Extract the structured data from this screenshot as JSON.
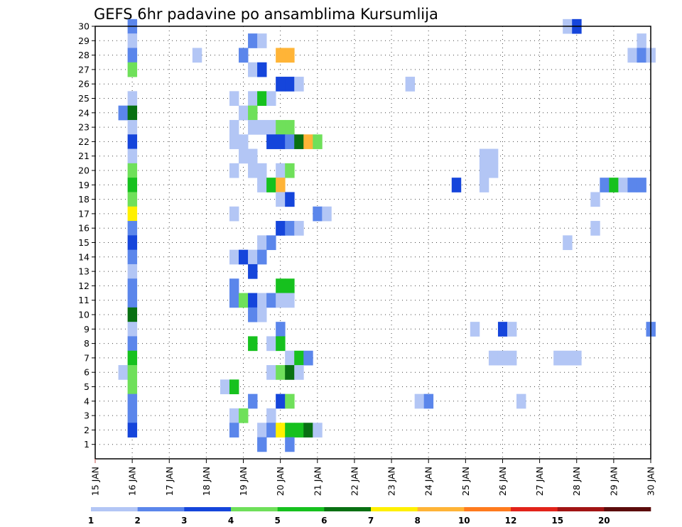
{
  "chart_data": {
    "type": "heatmap",
    "title": "GEFS 6hr padavine po ansamblima Kursumlija",
    "x_tick_labels": [
      "15 JAN",
      "16 JAN",
      "17 JAN",
      "18 JAN",
      "19 JAN",
      "20 JAN",
      "21 JAN",
      "22 JAN",
      "23 JAN",
      "24 JAN",
      "25 JAN",
      "26 JAN",
      "27 JAN",
      "28 JAN",
      "29 JAN",
      "30 JAN"
    ],
    "x_range_days": [
      15,
      30
    ],
    "y_tick_labels": [
      "1",
      "2",
      "3",
      "4",
      "5",
      "6",
      "7",
      "8",
      "9",
      "10",
      "11",
      "12",
      "13",
      "14",
      "15",
      "16",
      "17",
      "18",
      "19",
      "20",
      "21",
      "22",
      "23",
      "24",
      "25",
      "26",
      "27",
      "28",
      "29",
      "30"
    ],
    "y_range": [
      0,
      30
    ],
    "grid": true,
    "legend": "bottom",
    "colorbar": {
      "labels": [
        "1",
        "2",
        "3",
        "4",
        "5",
        "6",
        "7",
        "8",
        "10",
        "12",
        "15",
        "20"
      ],
      "colors": [
        "#b3c6f5",
        "#5b86eb",
        "#1545db",
        "#6fe05a",
        "#16c11e",
        "#087012",
        "#fff000",
        "#ffb437",
        "#ff7b1e",
        "#e2231a",
        "#a21414",
        "#5c0c0c"
      ]
    },
    "cells": [
      {
        "m": 30,
        "d": 16.0,
        "v": 2
      },
      {
        "m": 30,
        "d": 27.75,
        "v": 1
      },
      {
        "m": 30,
        "d": 28.0,
        "v": 3
      },
      {
        "m": 29,
        "d": 16.0,
        "v": 1
      },
      {
        "m": 29,
        "d": 19.25,
        "v": 2
      },
      {
        "m": 29,
        "d": 19.5,
        "v": 1
      },
      {
        "m": 29,
        "d": 29.75,
        "v": 1
      },
      {
        "m": 28,
        "d": 16.0,
        "v": 2
      },
      {
        "m": 28,
        "d": 17.75,
        "v": 1
      },
      {
        "m": 28,
        "d": 19.0,
        "v": 2
      },
      {
        "m": 28,
        "d": 20.0,
        "v": 8
      },
      {
        "m": 28,
        "d": 20.25,
        "v": 8
      },
      {
        "m": 28,
        "d": 29.5,
        "v": 1
      },
      {
        "m": 28,
        "d": 29.75,
        "v": 2
      },
      {
        "m": 28,
        "d": 30.0,
        "v": 1
      },
      {
        "m": 27,
        "d": 16.0,
        "v": 4
      },
      {
        "m": 27,
        "d": 19.25,
        "v": 1
      },
      {
        "m": 27,
        "d": 19.5,
        "v": 3
      },
      {
        "m": 26,
        "d": 20.0,
        "v": 3
      },
      {
        "m": 26,
        "d": 20.25,
        "v": 3
      },
      {
        "m": 26,
        "d": 20.5,
        "v": 1
      },
      {
        "m": 26,
        "d": 23.5,
        "v": 1
      },
      {
        "m": 25,
        "d": 16.0,
        "v": 1
      },
      {
        "m": 25,
        "d": 18.75,
        "v": 1
      },
      {
        "m": 25,
        "d": 19.25,
        "v": 1
      },
      {
        "m": 25,
        "d": 19.5,
        "v": 5
      },
      {
        "m": 25,
        "d": 19.75,
        "v": 1
      },
      {
        "m": 24,
        "d": 15.75,
        "v": 2
      },
      {
        "m": 24,
        "d": 16.0,
        "v": 6
      },
      {
        "m": 24,
        "d": 19.0,
        "v": 1
      },
      {
        "m": 24,
        "d": 19.25,
        "v": 4
      },
      {
        "m": 23,
        "d": 16.0,
        "v": 1
      },
      {
        "m": 23,
        "d": 18.75,
        "v": 1
      },
      {
        "m": 23,
        "d": 19.25,
        "v": 1
      },
      {
        "m": 23,
        "d": 19.5,
        "v": 1
      },
      {
        "m": 23,
        "d": 19.75,
        "v": 1
      },
      {
        "m": 23,
        "d": 20.0,
        "v": 4
      },
      {
        "m": 23,
        "d": 20.25,
        "v": 4
      },
      {
        "m": 22,
        "d": 16.0,
        "v": 3
      },
      {
        "m": 22,
        "d": 18.75,
        "v": 1
      },
      {
        "m": 22,
        "d": 19.0,
        "v": 1
      },
      {
        "m": 22,
        "d": 19.75,
        "v": 3
      },
      {
        "m": 22,
        "d": 20.0,
        "v": 3
      },
      {
        "m": 22,
        "d": 20.25,
        "v": 2
      },
      {
        "m": 22,
        "d": 20.5,
        "v": 6
      },
      {
        "m": 22,
        "d": 20.75,
        "v": 8
      },
      {
        "m": 22,
        "d": 21.0,
        "v": 4
      },
      {
        "m": 21,
        "d": 16.0,
        "v": 1
      },
      {
        "m": 21,
        "d": 19.0,
        "v": 1
      },
      {
        "m": 21,
        "d": 19.25,
        "v": 1
      },
      {
        "m": 21,
        "d": 25.5,
        "v": 1
      },
      {
        "m": 21,
        "d": 25.75,
        "v": 1
      },
      {
        "m": 20,
        "d": 16.0,
        "v": 4
      },
      {
        "m": 20,
        "d": 18.75,
        "v": 1
      },
      {
        "m": 20,
        "d": 19.25,
        "v": 1
      },
      {
        "m": 20,
        "d": 19.5,
        "v": 1
      },
      {
        "m": 20,
        "d": 20.0,
        "v": 1
      },
      {
        "m": 20,
        "d": 20.25,
        "v": 4
      },
      {
        "m": 20,
        "d": 25.5,
        "v": 1
      },
      {
        "m": 20,
        "d": 25.75,
        "v": 1
      },
      {
        "m": 19,
        "d": 16.0,
        "v": 5
      },
      {
        "m": 19,
        "d": 19.5,
        "v": 1
      },
      {
        "m": 19,
        "d": 19.75,
        "v": 5
      },
      {
        "m": 19,
        "d": 20.0,
        "v": 8
      },
      {
        "m": 19,
        "d": 24.75,
        "v": 3
      },
      {
        "m": 19,
        "d": 25.5,
        "v": 1
      },
      {
        "m": 19,
        "d": 28.75,
        "v": 2
      },
      {
        "m": 19,
        "d": 29.0,
        "v": 5
      },
      {
        "m": 19,
        "d": 29.25,
        "v": 1
      },
      {
        "m": 19,
        "d": 29.5,
        "v": 2
      },
      {
        "m": 19,
        "d": 29.75,
        "v": 2
      },
      {
        "m": 18,
        "d": 16.0,
        "v": 4
      },
      {
        "m": 18,
        "d": 20.0,
        "v": 1
      },
      {
        "m": 18,
        "d": 20.25,
        "v": 3
      },
      {
        "m": 18,
        "d": 28.5,
        "v": 1
      },
      {
        "m": 17,
        "d": 16.0,
        "v": 7
      },
      {
        "m": 17,
        "d": 18.75,
        "v": 1
      },
      {
        "m": 17,
        "d": 21.0,
        "v": 2
      },
      {
        "m": 17,
        "d": 21.25,
        "v": 1
      },
      {
        "m": 16,
        "d": 16.0,
        "v": 2
      },
      {
        "m": 16,
        "d": 20.0,
        "v": 3
      },
      {
        "m": 16,
        "d": 20.25,
        "v": 2
      },
      {
        "m": 16,
        "d": 20.5,
        "v": 1
      },
      {
        "m": 16,
        "d": 28.5,
        "v": 1
      },
      {
        "m": 15,
        "d": 16.0,
        "v": 3
      },
      {
        "m": 15,
        "d": 19.5,
        "v": 1
      },
      {
        "m": 15,
        "d": 19.75,
        "v": 2
      },
      {
        "m": 15,
        "d": 27.75,
        "v": 1
      },
      {
        "m": 14,
        "d": 16.0,
        "v": 2
      },
      {
        "m": 14,
        "d": 18.75,
        "v": 1
      },
      {
        "m": 14,
        "d": 19.0,
        "v": 3
      },
      {
        "m": 14,
        "d": 19.25,
        "v": 1
      },
      {
        "m": 14,
        "d": 19.5,
        "v": 2
      },
      {
        "m": 13,
        "d": 16.0,
        "v": 1
      },
      {
        "m": 13,
        "d": 19.25,
        "v": 3
      },
      {
        "m": 12,
        "d": 16.0,
        "v": 2
      },
      {
        "m": 12,
        "d": 18.75,
        "v": 2
      },
      {
        "m": 12,
        "d": 20.0,
        "v": 5
      },
      {
        "m": 12,
        "d": 20.25,
        "v": 5
      },
      {
        "m": 11,
        "d": 16.0,
        "v": 2
      },
      {
        "m": 11,
        "d": 18.75,
        "v": 2
      },
      {
        "m": 11,
        "d": 19.0,
        "v": 4
      },
      {
        "m": 11,
        "d": 19.25,
        "v": 3
      },
      {
        "m": 11,
        "d": 19.5,
        "v": 1
      },
      {
        "m": 11,
        "d": 19.75,
        "v": 2
      },
      {
        "m": 11,
        "d": 20.0,
        "v": 1
      },
      {
        "m": 11,
        "d": 20.25,
        "v": 1
      },
      {
        "m": 10,
        "d": 16.0,
        "v": 6
      },
      {
        "m": 10,
        "d": 19.25,
        "v": 2
      },
      {
        "m": 10,
        "d": 19.5,
        "v": 1
      },
      {
        "m": 9,
        "d": 16.0,
        "v": 1
      },
      {
        "m": 9,
        "d": 20.0,
        "v": 2
      },
      {
        "m": 9,
        "d": 25.25,
        "v": 1
      },
      {
        "m": 9,
        "d": 26.0,
        "v": 3
      },
      {
        "m": 9,
        "d": 26.25,
        "v": 1
      },
      {
        "m": 9,
        "d": 30.0,
        "v": 2
      },
      {
        "m": 8,
        "d": 16.0,
        "v": 2
      },
      {
        "m": 8,
        "d": 19.25,
        "v": 5
      },
      {
        "m": 8,
        "d": 19.75,
        "v": 1
      },
      {
        "m": 8,
        "d": 20.0,
        "v": 5
      },
      {
        "m": 7,
        "d": 16.0,
        "v": 5
      },
      {
        "m": 7,
        "d": 20.25,
        "v": 1
      },
      {
        "m": 7,
        "d": 20.5,
        "v": 5
      },
      {
        "m": 7,
        "d": 20.75,
        "v": 2
      },
      {
        "m": 7,
        "d": 25.75,
        "v": 1
      },
      {
        "m": 7,
        "d": 26.0,
        "v": 1
      },
      {
        "m": 7,
        "d": 26.25,
        "v": 1
      },
      {
        "m": 7,
        "d": 27.5,
        "v": 1
      },
      {
        "m": 7,
        "d": 27.75,
        "v": 1
      },
      {
        "m": 7,
        "d": 28.0,
        "v": 1
      },
      {
        "m": 6,
        "d": 15.75,
        "v": 1
      },
      {
        "m": 6,
        "d": 16.0,
        "v": 4
      },
      {
        "m": 6,
        "d": 19.75,
        "v": 1
      },
      {
        "m": 6,
        "d": 20.0,
        "v": 4
      },
      {
        "m": 6,
        "d": 20.25,
        "v": 6
      },
      {
        "m": 6,
        "d": 20.5,
        "v": 1
      },
      {
        "m": 5,
        "d": 16.0,
        "v": 4
      },
      {
        "m": 5,
        "d": 18.5,
        "v": 1
      },
      {
        "m": 5,
        "d": 18.75,
        "v": 5
      },
      {
        "m": 4,
        "d": 16.0,
        "v": 2
      },
      {
        "m": 4,
        "d": 19.25,
        "v": 2
      },
      {
        "m": 4,
        "d": 20.0,
        "v": 3
      },
      {
        "m": 4,
        "d": 20.25,
        "v": 4
      },
      {
        "m": 4,
        "d": 23.75,
        "v": 1
      },
      {
        "m": 4,
        "d": 24.0,
        "v": 2
      },
      {
        "m": 4,
        "d": 26.5,
        "v": 1
      },
      {
        "m": 3,
        "d": 16.0,
        "v": 2
      },
      {
        "m": 3,
        "d": 18.75,
        "v": 1
      },
      {
        "m": 3,
        "d": 19.0,
        "v": 4
      },
      {
        "m": 3,
        "d": 19.75,
        "v": 1
      },
      {
        "m": 2,
        "d": 16.0,
        "v": 3
      },
      {
        "m": 2,
        "d": 18.75,
        "v": 2
      },
      {
        "m": 2,
        "d": 19.5,
        "v": 1
      },
      {
        "m": 2,
        "d": 19.75,
        "v": 2
      },
      {
        "m": 2,
        "d": 20.0,
        "v": 7
      },
      {
        "m": 2,
        "d": 20.25,
        "v": 5
      },
      {
        "m": 2,
        "d": 20.5,
        "v": 5
      },
      {
        "m": 2,
        "d": 20.75,
        "v": 6
      },
      {
        "m": 2,
        "d": 21.0,
        "v": 1
      },
      {
        "m": 1,
        "d": 19.5,
        "v": 2
      },
      {
        "m": 1,
        "d": 20.25,
        "v": 2
      }
    ]
  }
}
